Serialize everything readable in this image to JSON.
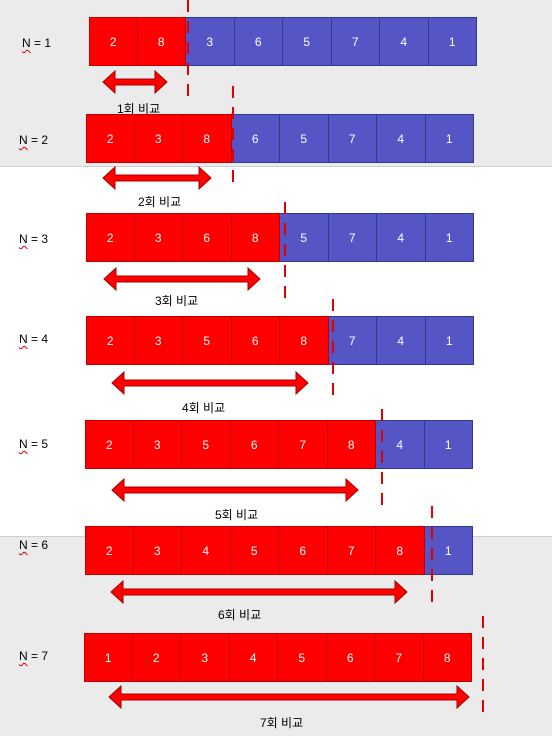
{
  "steps": [
    {
      "n_prefix": "N",
      "n_suffix": " = 1",
      "cells": [
        "2",
        "8",
        "3",
        "6",
        "5",
        "7",
        "4",
        "1"
      ],
      "red_count": 2,
      "caption": "1회 비교"
    },
    {
      "n_prefix": "N",
      "n_suffix": " = 2",
      "cells": [
        "2",
        "3",
        "8",
        "6",
        "5",
        "7",
        "4",
        "1"
      ],
      "red_count": 3,
      "caption": "2회 비교"
    },
    {
      "n_prefix": "N",
      "n_suffix": " = 3",
      "cells": [
        "2",
        "3",
        "6",
        "8",
        "5",
        "7",
        "4",
        "1"
      ],
      "red_count": 4,
      "caption": "3회 비교"
    },
    {
      "n_prefix": "N",
      "n_suffix": " = 4",
      "cells": [
        "2",
        "3",
        "5",
        "6",
        "8",
        "7",
        "4",
        "1"
      ],
      "red_count": 5,
      "caption": "4회 비교"
    },
    {
      "n_prefix": "N",
      "n_suffix": " = 5",
      "cells": [
        "2",
        "3",
        "5",
        "6",
        "7",
        "8",
        "4",
        "1"
      ],
      "red_count": 6,
      "caption": "5회 비교"
    },
    {
      "n_prefix": "N",
      "n_suffix": " = 6",
      "cells": [
        "2",
        "3",
        "4",
        "5",
        "6",
        "7",
        "8",
        "1"
      ],
      "red_count": 7,
      "caption": "6회 비교"
    },
    {
      "n_prefix": "N",
      "n_suffix": " = 7",
      "cells": [
        "1",
        "2",
        "3",
        "4",
        "5",
        "6",
        "7",
        "8"
      ],
      "red_count": 8,
      "caption": "7회 비교"
    }
  ],
  "colors": {
    "unsorted": "#5555c6",
    "compared": "#ff0000",
    "arrow": "#ff0000",
    "dash": "#e00000"
  }
}
